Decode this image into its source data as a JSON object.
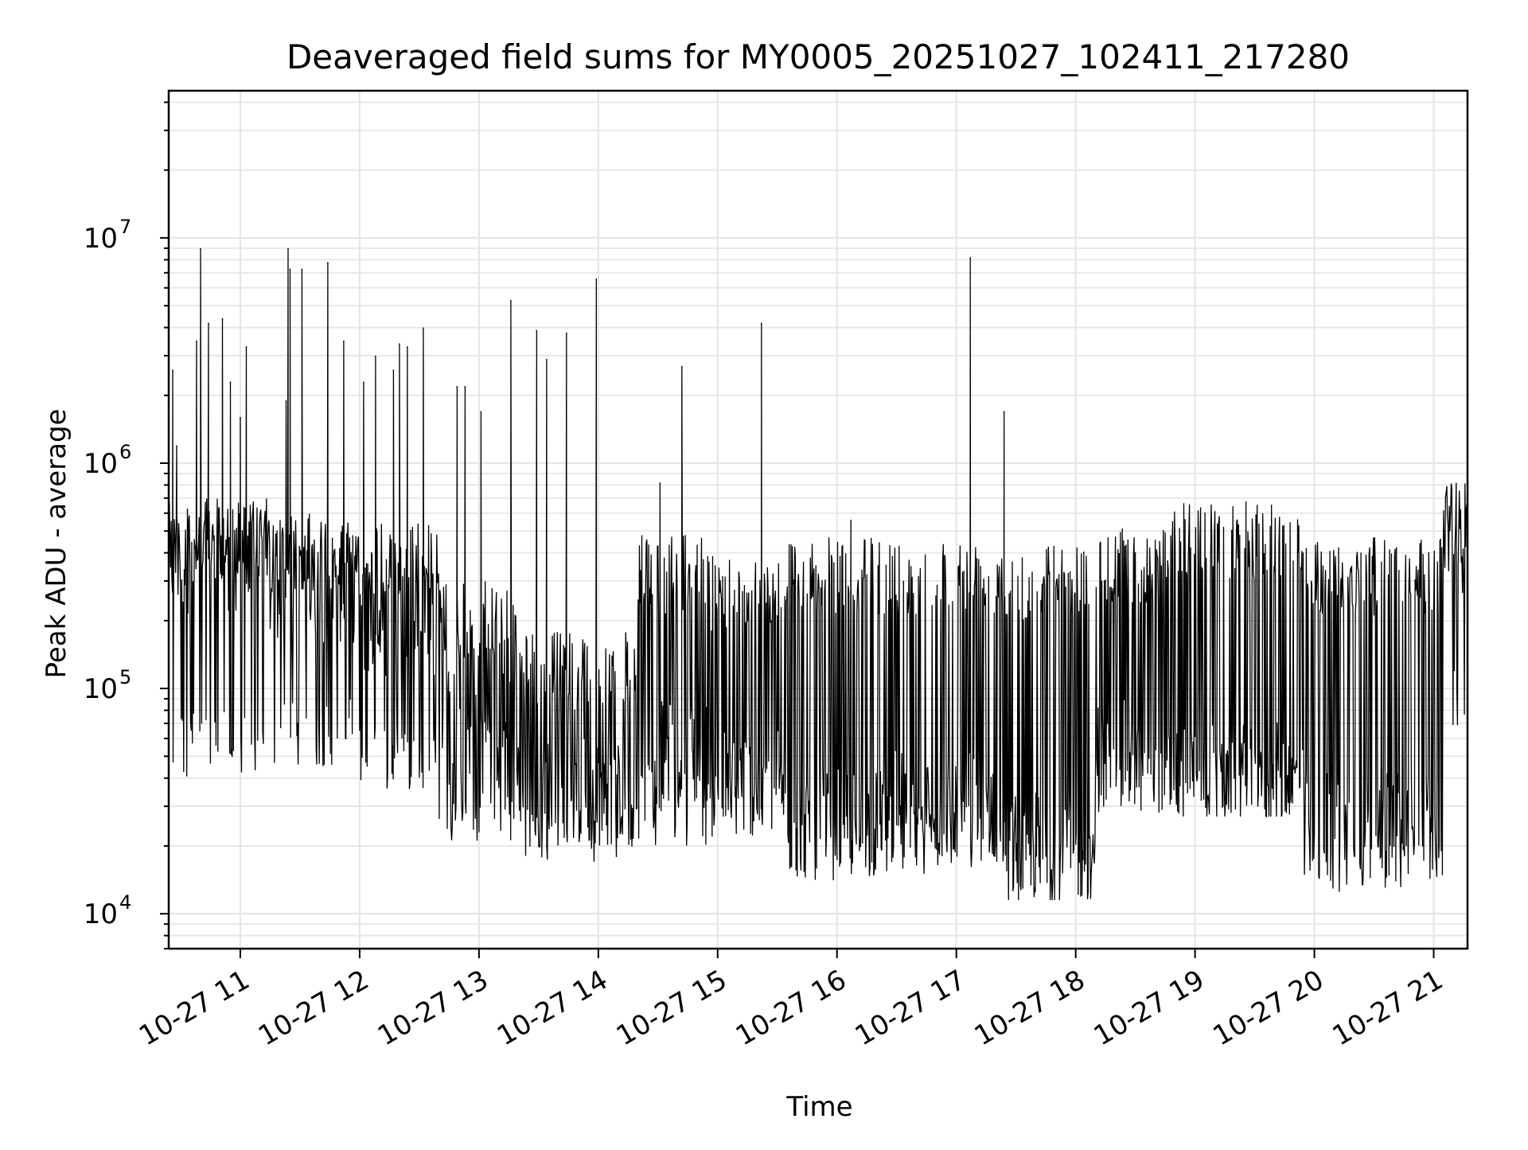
{
  "chart_data": {
    "type": "line",
    "title": "Deaveraged field sums for MY0005_20251027_102411_217280",
    "xlabel": "Time",
    "ylabel": "Peak ADU - average",
    "yscale": "log",
    "grid": true,
    "legend": "none",
    "xlim": [
      "2025-10-27 10:24",
      "2025-10-27 21:17"
    ],
    "ylim": [
      7000,
      45000000
    ],
    "x_ticks": [
      {
        "value": "2025-10-27 11:00",
        "label": "10-27 11"
      },
      {
        "value": "2025-10-27 12:00",
        "label": "10-27 12"
      },
      {
        "value": "2025-10-27 13:00",
        "label": "10-27 13"
      },
      {
        "value": "2025-10-27 14:00",
        "label": "10-27 14"
      },
      {
        "value": "2025-10-27 15:00",
        "label": "10-27 15"
      },
      {
        "value": "2025-10-27 16:00",
        "label": "10-27 16"
      },
      {
        "value": "2025-10-27 17:00",
        "label": "10-27 17"
      },
      {
        "value": "2025-10-27 18:00",
        "label": "10-27 18"
      },
      {
        "value": "2025-10-27 19:00",
        "label": "10-27 19"
      },
      {
        "value": "2025-10-27 20:00",
        "label": "10-27 20"
      },
      {
        "value": "2025-10-27 21:00",
        "label": "10-27 21"
      }
    ],
    "y_ticks": [
      {
        "value": 10000,
        "base": "10",
        "exp": "4"
      },
      {
        "value": 100000,
        "base": "10",
        "exp": "5"
      },
      {
        "value": 1000000,
        "base": "10",
        "exp": "6"
      },
      {
        "value": 10000000,
        "base": "10",
        "exp": "7"
      }
    ],
    "colors": {
      "line": "#000000",
      "grid": "#e6e6e6",
      "axes": "#000000"
    },
    "series": [
      {
        "spikes": [
          {
            "t": "2025-10-27 10:26",
            "y": 2600000
          },
          {
            "t": "2025-10-27 10:28",
            "y": 1200000
          },
          {
            "t": "2025-10-27 10:38",
            "y": 3500000
          },
          {
            "t": "2025-10-27 10:40",
            "y": 9000000
          },
          {
            "t": "2025-10-27 10:44",
            "y": 4200000
          },
          {
            "t": "2025-10-27 10:51",
            "y": 4400000
          },
          {
            "t": "2025-10-27 10:55",
            "y": 2300000
          },
          {
            "t": "2025-10-27 11:00",
            "y": 1600000
          },
          {
            "t": "2025-10-27 11:03",
            "y": 3300000
          },
          {
            "t": "2025-10-27 11:23",
            "y": 1900000
          },
          {
            "t": "2025-10-27 11:24",
            "y": 9000000
          },
          {
            "t": "2025-10-27 11:25",
            "y": 7300000
          },
          {
            "t": "2025-10-27 11:31",
            "y": 7300000
          },
          {
            "t": "2025-10-27 11:44",
            "y": 7800000
          },
          {
            "t": "2025-10-27 11:52",
            "y": 3500000
          },
          {
            "t": "2025-10-27 12:02",
            "y": 2300000
          },
          {
            "t": "2025-10-27 12:08",
            "y": 3000000
          },
          {
            "t": "2025-10-27 12:17",
            "y": 2600000
          },
          {
            "t": "2025-10-27 12:20",
            "y": 3400000
          },
          {
            "t": "2025-10-27 12:24",
            "y": 3300000
          },
          {
            "t": "2025-10-27 12:32",
            "y": 4000000
          },
          {
            "t": "2025-10-27 12:49",
            "y": 2200000
          },
          {
            "t": "2025-10-27 12:53",
            "y": 2200000
          },
          {
            "t": "2025-10-27 13:01",
            "y": 1700000
          },
          {
            "t": "2025-10-27 13:16",
            "y": 5300000
          },
          {
            "t": "2025-10-27 13:29",
            "y": 3900000
          },
          {
            "t": "2025-10-27 13:34",
            "y": 2900000
          },
          {
            "t": "2025-10-27 13:44",
            "y": 3800000
          },
          {
            "t": "2025-10-27 13:59",
            "y": 6600000
          },
          {
            "t": "2025-10-27 14:31",
            "y": 820000
          },
          {
            "t": "2025-10-27 14:42",
            "y": 2700000
          },
          {
            "t": "2025-10-27 15:22",
            "y": 4200000
          },
          {
            "t": "2025-10-27 16:07",
            "y": 560000
          },
          {
            "t": "2025-10-27 17:07",
            "y": 8200000
          },
          {
            "t": "2025-10-27 17:24",
            "y": 1700000
          }
        ],
        "segments": [
          {
            "t_start": "2025-10-27 10:24",
            "t_end": "2025-10-27 11:15",
            "low": 40000,
            "high": 700000,
            "base": 380000
          },
          {
            "t_start": "2025-10-27 11:15",
            "t_end": "2025-10-27 12:00",
            "low": 45000,
            "high": 600000,
            "base": 280000
          },
          {
            "t_start": "2025-10-27 12:00",
            "t_end": "2025-10-27 12:40",
            "low": 35000,
            "high": 550000,
            "base": 200000
          },
          {
            "t_start": "2025-10-27 12:40",
            "t_end": "2025-10-27 13:20",
            "low": 20000,
            "high": 300000,
            "base": 70000
          },
          {
            "t_start": "2025-10-27 13:20",
            "t_end": "2025-10-27 14:20",
            "low": 17000,
            "high": 180000,
            "base": 35000
          },
          {
            "t_start": "2025-10-27 14:20",
            "t_end": "2025-10-27 14:55",
            "low": 20000,
            "high": 480000,
            "base": 50000
          },
          {
            "t_start": "2025-10-27 14:55",
            "t_end": "2025-10-27 15:35",
            "low": 22000,
            "high": 400000,
            "base": 38000
          },
          {
            "t_start": "2025-10-27 15:35",
            "t_end": "2025-10-27 16:20",
            "low": 14000,
            "high": 470000,
            "base": 25000
          },
          {
            "t_start": "2025-10-27 16:20",
            "t_end": "2025-10-27 17:25",
            "low": 15000,
            "high": 470000,
            "base": 30000
          },
          {
            "t_start": "2025-10-27 17:25",
            "t_end": "2025-10-27 18:10",
            "low": 11500,
            "high": 450000,
            "base": 20000
          },
          {
            "t_start": "2025-10-27 18:10",
            "t_end": "2025-10-27 18:45",
            "low": 28000,
            "high": 520000,
            "base": 50000
          },
          {
            "t_start": "2025-10-27 18:45",
            "t_end": "2025-10-27 19:55",
            "low": 27000,
            "high": 680000,
            "base": 40000
          },
          {
            "t_start": "2025-10-27 19:55",
            "t_end": "2025-10-27 21:05",
            "low": 12500,
            "high": 470000,
            "base": 25000
          },
          {
            "t_start": "2025-10-27 21:05",
            "t_end": "2025-10-27 21:17",
            "low": 60000,
            "high": 900000,
            "base": 400000
          }
        ]
      }
    ]
  }
}
